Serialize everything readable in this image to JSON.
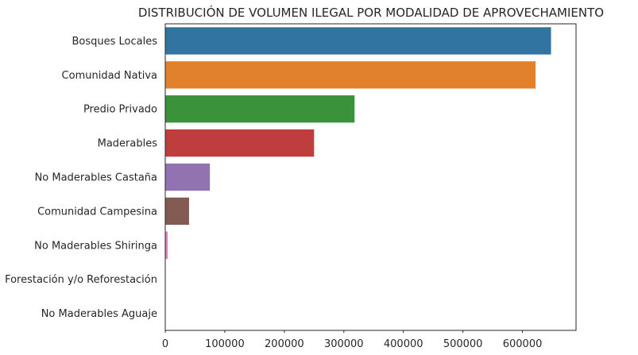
{
  "chart_data": {
    "type": "bar",
    "orientation": "horizontal",
    "title": "DISTRIBUCIÓN DE VOLUMEN ILEGAL POR MODALIDAD DE APROVECHAMIENTO",
    "xlabel": "",
    "ylabel": "",
    "xlim": [
      0,
      690000
    ],
    "xticks": [
      0,
      100000,
      200000,
      300000,
      400000,
      500000,
      600000
    ],
    "xtick_labels": [
      "0",
      "100000",
      "200000",
      "300000",
      "400000",
      "500000",
      "600000"
    ],
    "grid": false,
    "legend": "none",
    "categories": [
      "Bosques Locales",
      "Comunidad Nativa",
      "Predio Privado",
      "Maderables",
      "No Maderables Castaña",
      "Comunidad Campesina",
      "No Maderables Shiringa",
      "Forestación y/o Reforestación",
      "No Maderables Aguaje"
    ],
    "values": [
      648000,
      622000,
      318000,
      250000,
      75000,
      40000,
      4000,
      0,
      0
    ],
    "colors": [
      "#3274a1",
      "#e1812c",
      "#3a923a",
      "#c03d3e",
      "#9372b2",
      "#845b53",
      "#d684bd",
      "#7f7f7f",
      "#a9aa35"
    ]
  }
}
